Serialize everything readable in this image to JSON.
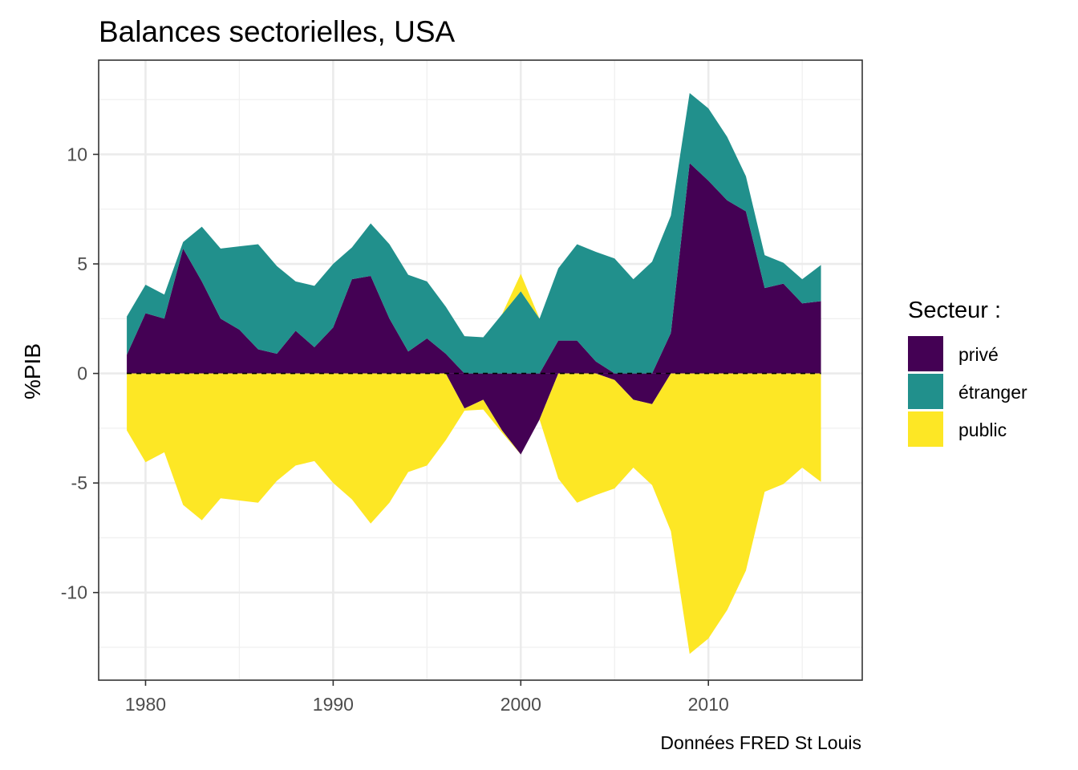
{
  "chart_data": {
    "type": "area",
    "title": "Balances sectorielles, USA",
    "xlabel": "",
    "ylabel": "%PIB",
    "caption": "Données FRED St Louis",
    "xlim": [
      1977.5,
      2018.2
    ],
    "ylim": [
      -14.0,
      14.3
    ],
    "x_ticks": [
      1980,
      1990,
      2000,
      2010
    ],
    "x_tick_labels": [
      "1980",
      "1990",
      "2000",
      "2010"
    ],
    "y_ticks": [
      -10,
      -5,
      0,
      5,
      10
    ],
    "y_tick_labels": [
      "-10",
      "-5",
      "0",
      "5",
      "10"
    ],
    "grid": true,
    "zero_line": "dashed",
    "legend": {
      "title": "Secteur :",
      "position": "right"
    },
    "x": [
      1979,
      1980,
      1981,
      1982,
      1983,
      1984,
      1985,
      1986,
      1987,
      1988,
      1989,
      1990,
      1991,
      1992,
      1993,
      1994,
      1995,
      1996,
      1997,
      1998,
      1999,
      2000,
      2001,
      2002,
      2003,
      2004,
      2005,
      2006,
      2007,
      2008,
      2009,
      2010,
      2011,
      2012,
      2013,
      2014,
      2015,
      2016
    ],
    "series": [
      {
        "name": "privé",
        "color": "#440154",
        "values": [
          0.85,
          2.75,
          2.5,
          5.7,
          4.2,
          2.5,
          2.0,
          1.1,
          0.9,
          1.95,
          1.2,
          2.1,
          4.3,
          4.45,
          2.5,
          1.0,
          1.6,
          0.9,
          -1.6,
          -1.2,
          -2.6,
          -3.7,
          -2.1,
          1.5,
          1.5,
          0.55,
          -0.3,
          -1.2,
          -1.4,
          1.85,
          9.6,
          8.8,
          7.9,
          7.4,
          3.9,
          4.1,
          3.2,
          3.3
        ]
      },
      {
        "name": "étranger",
        "color": "#21908C",
        "values": [
          1.75,
          1.3,
          1.1,
          0.3,
          2.5,
          3.2,
          3.8,
          4.8,
          4.0,
          2.25,
          2.8,
          2.9,
          1.45,
          2.4,
          3.4,
          3.5,
          2.6,
          2.15,
          1.7,
          1.65,
          2.7,
          3.75,
          2.5,
          3.3,
          4.4,
          5.0,
          5.25,
          4.3,
          5.1,
          5.35,
          3.2,
          3.3,
          2.9,
          1.6,
          1.5,
          0.95,
          1.1,
          1.65
        ]
      },
      {
        "name": "public",
        "color": "#FDE725",
        "values": [
          -2.6,
          -4.05,
          -3.6,
          -6.0,
          -6.7,
          -5.7,
          -5.8,
          -5.9,
          -4.9,
          -4.2,
          -4.0,
          -5.0,
          -5.75,
          -6.85,
          -5.9,
          -4.5,
          -4.2,
          -3.05,
          -0.1,
          -0.45,
          -0.1,
          0.8,
          0.0,
          -4.8,
          -5.9,
          -5.55,
          -4.95,
          -3.1,
          -3.7,
          -7.2,
          -12.8,
          -12.1,
          -10.8,
          -9.0,
          -5.4,
          -5.05,
          -4.3,
          -4.95
        ]
      }
    ]
  }
}
